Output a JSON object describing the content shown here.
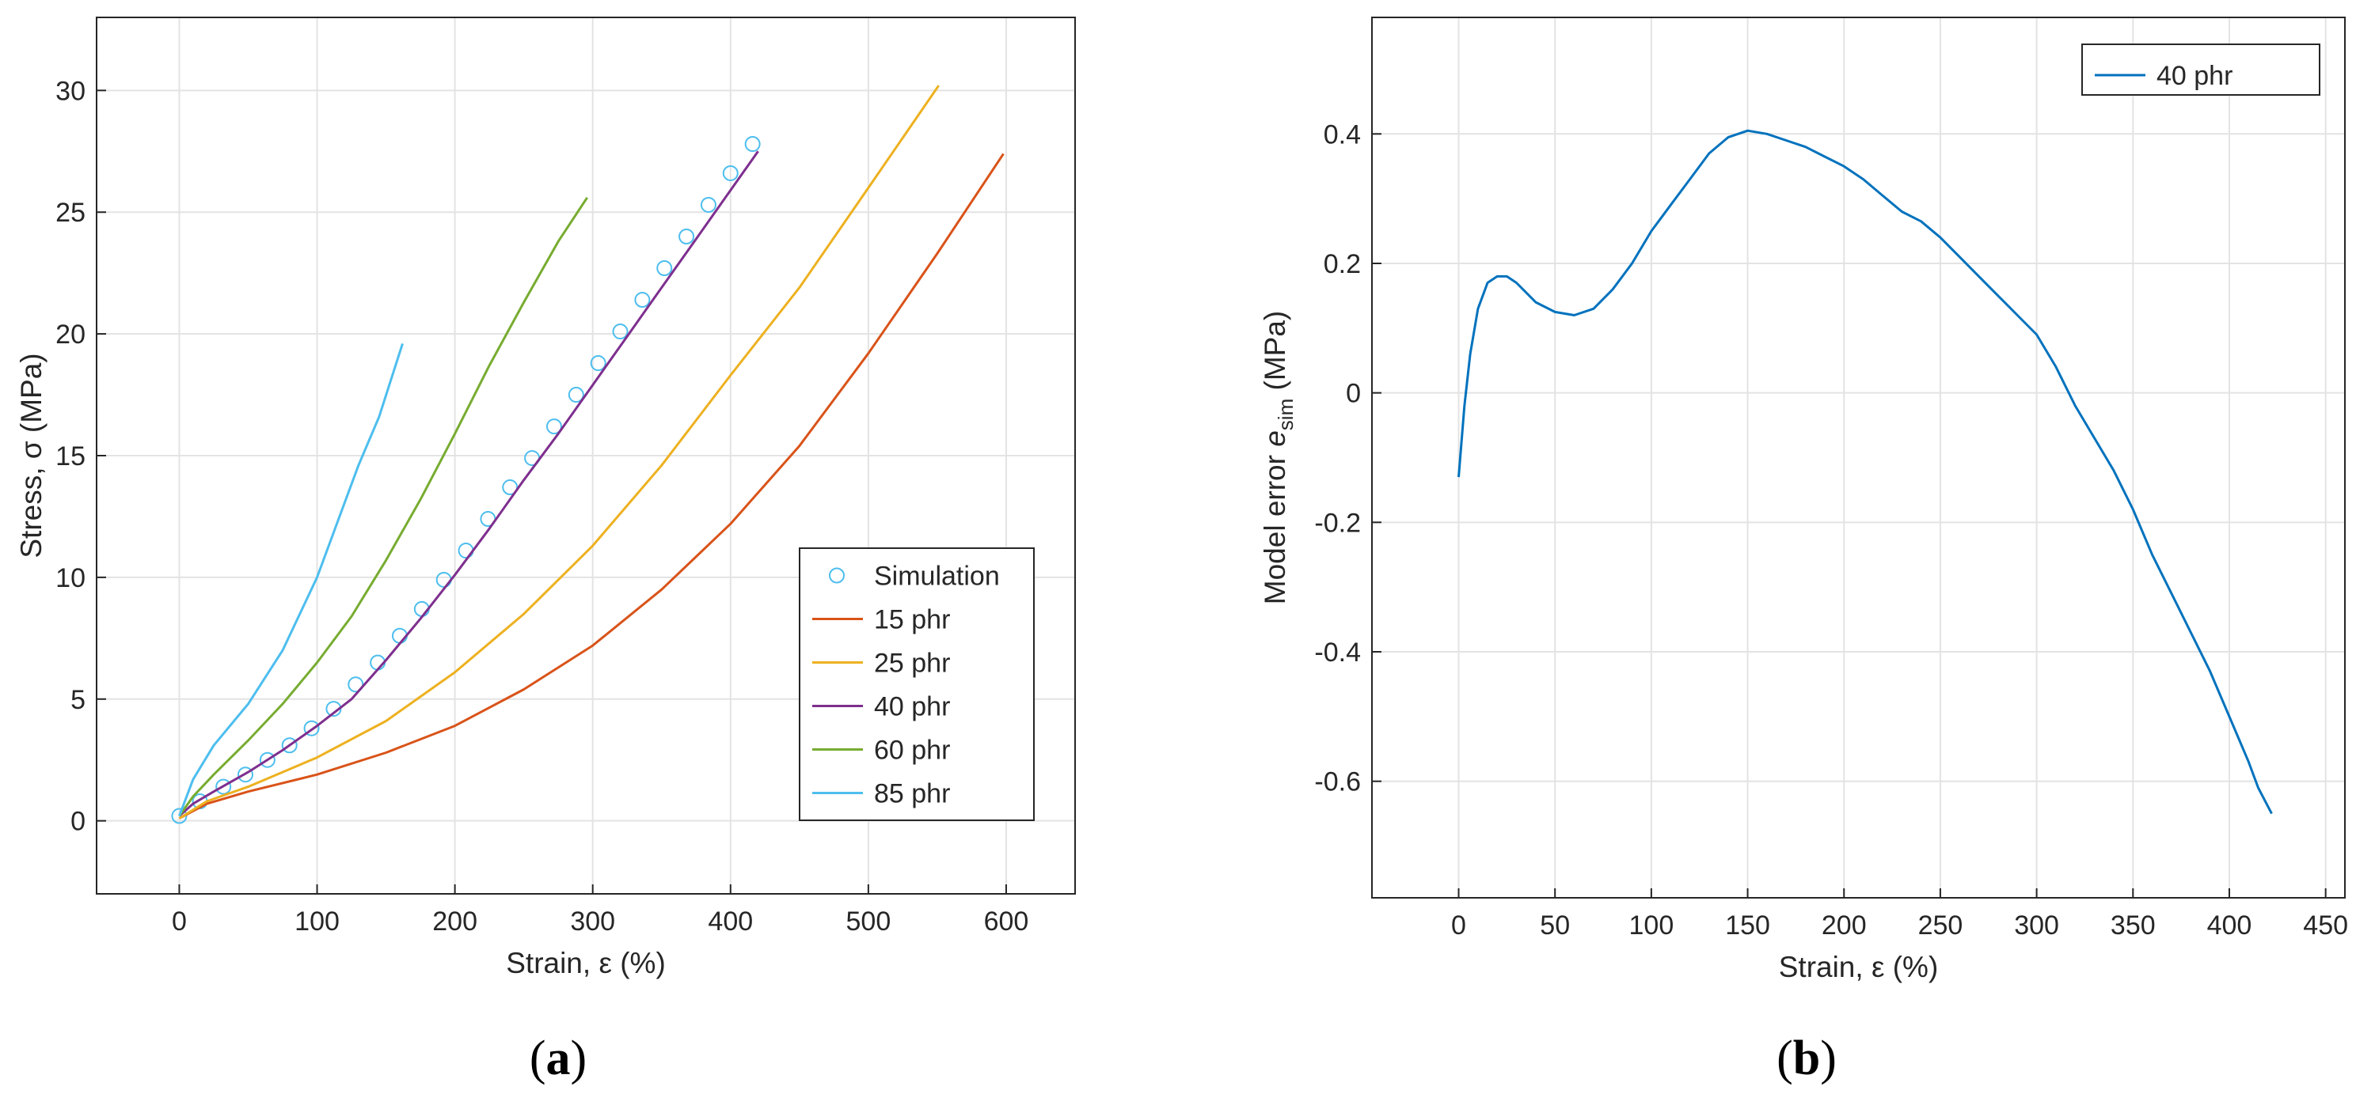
{
  "panel_labels": [
    "a",
    "b"
  ],
  "chart_data": [
    {
      "type": "line",
      "panel": "a",
      "title": "",
      "xlabel": "Strain, ε (%)",
      "ylabel": "Stress, σ (MPa)",
      "xlim": [
        -60,
        650
      ],
      "ylim": [
        -3,
        33
      ],
      "xticks": [
        0,
        100,
        200,
        300,
        400,
        500,
        600
      ],
      "yticks": [
        0,
        5,
        10,
        15,
        20,
        25,
        30
      ],
      "grid": true,
      "legend_position": "bottom-right",
      "series": [
        {
          "name": "Simulation",
          "style": "markers",
          "marker": "circle",
          "color": "#4DBEEE",
          "x": [
            0,
            15,
            32,
            48,
            64,
            80,
            96,
            112,
            128,
            144,
            160,
            176,
            192,
            208,
            224,
            240,
            256,
            272,
            288,
            304,
            320,
            336,
            352,
            368,
            384,
            400,
            416
          ],
          "y": [
            0.2,
            0.8,
            1.4,
            1.9,
            2.5,
            3.1,
            3.8,
            4.6,
            5.6,
            6.5,
            7.6,
            8.7,
            9.9,
            11.1,
            12.4,
            13.7,
            14.9,
            16.2,
            17.5,
            18.8,
            20.1,
            21.4,
            22.7,
            24.0,
            25.3,
            26.6,
            27.8
          ]
        },
        {
          "name": "15 phr",
          "style": "line",
          "color": "#D95319",
          "x": [
            0,
            20,
            50,
            100,
            150,
            200,
            250,
            300,
            350,
            400,
            450,
            500,
            550,
            598
          ],
          "y": [
            0.1,
            0.7,
            1.2,
            1.9,
            2.8,
            3.9,
            5.4,
            7.2,
            9.5,
            12.2,
            15.4,
            19.2,
            23.3,
            27.4
          ]
        },
        {
          "name": "25 phr",
          "style": "line",
          "color": "#EDB120",
          "x": [
            0,
            20,
            50,
            100,
            150,
            200,
            250,
            300,
            350,
            400,
            450,
            500,
            551
          ],
          "y": [
            0.1,
            0.8,
            1.4,
            2.6,
            4.1,
            6.1,
            8.5,
            11.3,
            14.6,
            18.3,
            21.9,
            26.0,
            30.2
          ]
        },
        {
          "name": "40 phr",
          "style": "line",
          "color": "#7E2F8E",
          "x": [
            0,
            10,
            25,
            50,
            75,
            100,
            125,
            150,
            175,
            200,
            225,
            250,
            275,
            300,
            325,
            350,
            375,
            400,
            420
          ],
          "y": [
            0.2,
            0.7,
            1.2,
            2.0,
            2.9,
            3.9,
            5.0,
            6.6,
            8.3,
            10.1,
            12.0,
            14.0,
            15.9,
            17.9,
            19.9,
            21.9,
            23.9,
            25.9,
            27.5
          ]
        },
        {
          "name": "60 phr",
          "style": "line",
          "color": "#77AC30",
          "x": [
            0,
            10,
            25,
            50,
            75,
            100,
            125,
            150,
            175,
            200,
            225,
            250,
            275,
            296
          ],
          "y": [
            0.2,
            1.0,
            1.9,
            3.3,
            4.8,
            6.5,
            8.4,
            10.7,
            13.2,
            15.9,
            18.7,
            21.3,
            23.8,
            25.6
          ]
        },
        {
          "name": "85 phr",
          "style": "line",
          "color": "#4DBEEE",
          "x": [
            0,
            10,
            25,
            50,
            75,
            100,
            115,
            130,
            145,
            162
          ],
          "y": [
            0.2,
            1.7,
            3.1,
            4.8,
            7.0,
            10.0,
            12.3,
            14.6,
            16.6,
            19.6
          ]
        }
      ]
    },
    {
      "type": "line",
      "panel": "b",
      "title": "",
      "xlabel": "Strain, ε (%)",
      "ylabel_main": "Model error ",
      "ylabel_symbol": "e",
      "ylabel_sub": "sim",
      "ylabel_unit": " (MPa)",
      "xlim": [
        -45,
        460
      ],
      "ylim": [
        -0.78,
        0.58
      ],
      "xticks": [
        0,
        50,
        100,
        150,
        200,
        250,
        300,
        350,
        400,
        450
      ],
      "yticks": [
        -0.6,
        -0.4,
        -0.2,
        0,
        0.2,
        0.4
      ],
      "ytick_labels": [
        "-0.6",
        "-0.4",
        "-0.2",
        "0",
        "0.2",
        "0.4"
      ],
      "grid": true,
      "legend_position": "top-right",
      "series": [
        {
          "name": "40 phr",
          "style": "line",
          "color": "#0072BD",
          "x": [
            0,
            3,
            6,
            10,
            15,
            20,
            25,
            30,
            40,
            50,
            60,
            70,
            80,
            90,
            100,
            110,
            120,
            130,
            140,
            150,
            160,
            170,
            180,
            190,
            200,
            210,
            220,
            230,
            240,
            250,
            260,
            270,
            280,
            290,
            300,
            310,
            320,
            330,
            340,
            350,
            360,
            370,
            380,
            390,
            400,
            410,
            415,
            422
          ],
          "y": [
            -0.13,
            -0.02,
            0.06,
            0.13,
            0.17,
            0.18,
            0.18,
            0.17,
            0.14,
            0.125,
            0.12,
            0.13,
            0.16,
            0.2,
            0.25,
            0.29,
            0.33,
            0.37,
            0.395,
            0.405,
            0.4,
            0.39,
            0.38,
            0.365,
            0.35,
            0.33,
            0.305,
            0.28,
            0.265,
            0.24,
            0.21,
            0.18,
            0.15,
            0.12,
            0.09,
            0.04,
            -0.02,
            -0.07,
            -0.12,
            -0.18,
            -0.25,
            -0.31,
            -0.37,
            -0.43,
            -0.5,
            -0.57,
            -0.61,
            -0.65
          ]
        }
      ]
    }
  ]
}
